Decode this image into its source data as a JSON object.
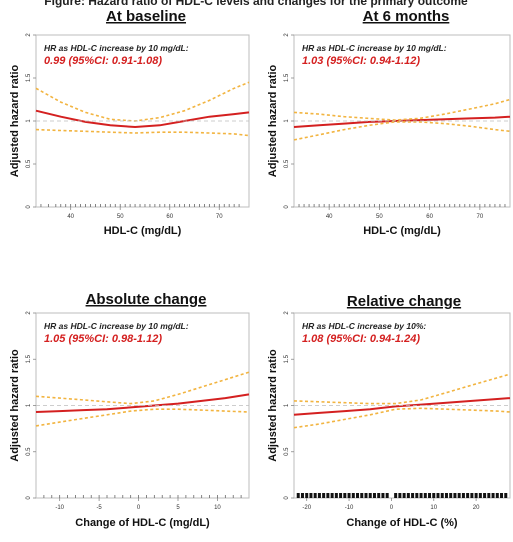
{
  "figure_header": "Figure: Hazard ratio of HDL-C levels and changes for the primary outcome",
  "chart_data": [
    {
      "type": "line",
      "title": "At baseline",
      "xlabel": "HDL-C (mg/dL)",
      "ylabel": "Adjusted hazard ratio",
      "annotation_line1": "HR as HDL-C increase by 10 mg/dL:",
      "annotation_line2": "0.99 (95%CI: 0.91-1.08)",
      "xlim": [
        33,
        76
      ],
      "ylim": [
        0,
        2
      ],
      "xticks": [
        40,
        50,
        60,
        70
      ],
      "yticks": [
        0,
        0.5,
        1.0,
        1.5,
        2.0
      ],
      "grid": false,
      "series": [
        {
          "role": "estimate",
          "color": "#d42020",
          "x": [
            33,
            38,
            43,
            48,
            53,
            58,
            63,
            68,
            73,
            76
          ],
          "y": [
            1.12,
            1.05,
            0.99,
            0.95,
            0.93,
            0.95,
            1.0,
            1.05,
            1.08,
            1.1
          ]
        },
        {
          "role": "ci-upper",
          "color": "#f2b440",
          "x": [
            33,
            38,
            43,
            48,
            53,
            58,
            63,
            68,
            73,
            76
          ],
          "y": [
            1.38,
            1.22,
            1.1,
            1.02,
            1.0,
            1.04,
            1.12,
            1.24,
            1.38,
            1.45
          ]
        },
        {
          "role": "ci-lower",
          "color": "#f2b440",
          "x": [
            33,
            38,
            43,
            48,
            53,
            58,
            63,
            68,
            73,
            76
          ],
          "y": [
            0.9,
            0.89,
            0.88,
            0.87,
            0.86,
            0.87,
            0.87,
            0.86,
            0.85,
            0.83
          ]
        },
        {
          "role": "reference",
          "color": "#bdbdbd",
          "x": [
            33,
            76
          ],
          "y": [
            1.0,
            1.0
          ]
        }
      ],
      "rug": [
        34,
        35.5,
        37,
        38,
        39,
        40,
        41,
        42,
        43,
        44,
        45,
        46,
        47,
        48,
        49,
        50,
        51,
        52,
        53,
        54,
        55,
        56,
        57,
        58,
        59,
        60,
        61,
        62,
        63,
        64,
        65,
        66,
        67,
        68,
        69,
        70,
        71,
        72,
        73,
        74
      ]
    },
    {
      "type": "line",
      "title": "At 6 months",
      "xlabel": "HDL-C (mg/dL)",
      "ylabel": "Adjusted hazard ratio",
      "annotation_line1": "HR as HDL-C increase by 10 mg/dL:",
      "annotation_line2": "1.03 (95%CI: 0.94-1.12)",
      "xlim": [
        33,
        76
      ],
      "ylim": [
        0,
        2
      ],
      "xticks": [
        40,
        50,
        60,
        70
      ],
      "yticks": [
        0,
        0.5,
        1.0,
        1.5,
        2.0
      ],
      "grid": false,
      "series": [
        {
          "role": "estimate",
          "color": "#d42020",
          "x": [
            33,
            38,
            43,
            48,
            53,
            58,
            63,
            68,
            73,
            76
          ],
          "y": [
            0.93,
            0.95,
            0.97,
            0.99,
            1.0,
            1.01,
            1.02,
            1.03,
            1.04,
            1.05
          ]
        },
        {
          "role": "ci-upper",
          "color": "#f2b440",
          "x": [
            33,
            38,
            43,
            48,
            53,
            58,
            63,
            68,
            73,
            76
          ],
          "y": [
            1.1,
            1.08,
            1.05,
            1.03,
            1.01,
            1.03,
            1.08,
            1.14,
            1.2,
            1.25
          ]
        },
        {
          "role": "ci-lower",
          "color": "#f2b440",
          "x": [
            33,
            38,
            43,
            48,
            53,
            58,
            63,
            68,
            73,
            76
          ],
          "y": [
            0.78,
            0.84,
            0.9,
            0.95,
            0.99,
            0.99,
            0.97,
            0.94,
            0.9,
            0.88
          ]
        },
        {
          "role": "reference",
          "color": "#bdbdbd",
          "x": [
            33,
            76
          ],
          "y": [
            1.0,
            1.0
          ]
        }
      ],
      "rug": [
        34,
        35,
        36,
        37,
        38,
        39,
        40,
        41,
        42,
        43,
        44,
        45,
        46,
        47,
        48,
        49,
        50,
        51,
        52,
        53,
        54,
        55,
        56,
        57,
        58,
        59,
        60,
        61,
        62,
        63,
        64,
        65,
        66,
        67,
        68,
        69,
        70,
        71,
        72,
        73,
        74,
        75
      ]
    },
    {
      "type": "line",
      "title": "Absolute change",
      "xlabel": "Change of HDL-C (mg/dL)",
      "ylabel": "Adjusted hazard ratio",
      "annotation_line1": "HR as HDL-C increase by 10 mg/dL:",
      "annotation_line2": "1.05 (95%CI: 0.98-1.12)",
      "xlim": [
        -13,
        14
      ],
      "ylim": [
        0,
        2
      ],
      "xticks": [
        -10,
        -5,
        0,
        5,
        10
      ],
      "yticks": [
        0,
        0.5,
        1.0,
        1.5,
        2.0
      ],
      "grid": false,
      "series": [
        {
          "role": "estimate",
          "color": "#d42020",
          "x": [
            -13,
            -10,
            -7,
            -4,
            -1,
            2,
            5,
            8,
            11,
            14
          ],
          "y": [
            0.93,
            0.94,
            0.95,
            0.96,
            0.98,
            1.0,
            1.02,
            1.05,
            1.08,
            1.12
          ]
        },
        {
          "role": "ci-upper",
          "color": "#f2b440",
          "x": [
            -13,
            -10,
            -7,
            -4,
            -1,
            2,
            5,
            8,
            11,
            14
          ],
          "y": [
            1.1,
            1.08,
            1.06,
            1.04,
            1.02,
            1.05,
            1.12,
            1.2,
            1.28,
            1.36
          ]
        },
        {
          "role": "ci-lower",
          "color": "#f2b440",
          "x": [
            -13,
            -10,
            -7,
            -4,
            -1,
            2,
            5,
            8,
            11,
            14
          ],
          "y": [
            0.78,
            0.82,
            0.86,
            0.9,
            0.94,
            0.96,
            0.96,
            0.95,
            0.94,
            0.93
          ]
        },
        {
          "role": "reference",
          "color": "#bdbdbd",
          "x": [
            -13,
            14
          ],
          "y": [
            1.0,
            1.0
          ]
        }
      ],
      "rug": [
        -12,
        -11,
        -10,
        -9,
        -8,
        -7,
        -6,
        -5,
        -4,
        -3,
        -2,
        -1,
        0,
        1,
        2,
        3,
        4,
        5,
        6,
        7,
        8,
        9,
        10,
        11,
        12,
        13
      ]
    },
    {
      "type": "line",
      "title": "Relative change",
      "xlabel": "Change of HDL-C (%)",
      "ylabel": "Adjusted hazard ratio",
      "annotation_line1": "HR as HDL-C increase by 10%:",
      "annotation_line2": "1.08 (95%CI: 0.94-1.24)",
      "xlim": [
        -23,
        28
      ],
      "ylim": [
        0,
        2
      ],
      "xticks": [
        -20,
        -10,
        0,
        10,
        20
      ],
      "yticks": [
        0,
        0.5,
        1.0,
        1.5,
        2.0
      ],
      "grid": false,
      "series": [
        {
          "role": "estimate",
          "color": "#d42020",
          "x": [
            -23,
            -17,
            -11,
            -5,
            1,
            7,
            13,
            19,
            25,
            28
          ],
          "y": [
            0.9,
            0.92,
            0.94,
            0.96,
            0.99,
            1.01,
            1.03,
            1.05,
            1.07,
            1.08
          ]
        },
        {
          "role": "ci-upper",
          "color": "#f2b440",
          "x": [
            -23,
            -17,
            -11,
            -5,
            1,
            7,
            13,
            19,
            25,
            28
          ],
          "y": [
            1.05,
            1.04,
            1.03,
            1.02,
            1.02,
            1.06,
            1.14,
            1.22,
            1.3,
            1.34
          ]
        },
        {
          "role": "ci-lower",
          "color": "#f2b440",
          "x": [
            -23,
            -17,
            -11,
            -5,
            1,
            7,
            13,
            19,
            25,
            28
          ],
          "y": [
            0.76,
            0.8,
            0.85,
            0.9,
            0.96,
            0.97,
            0.96,
            0.95,
            0.94,
            0.93
          ]
        },
        {
          "role": "reference",
          "color": "#bdbdbd",
          "x": [
            -23,
            28
          ],
          "y": [
            1.0,
            1.0
          ]
        }
      ],
      "rug": [
        -22,
        -21,
        -20,
        -19,
        -18,
        -17,
        -16,
        -15,
        -14,
        -13,
        -12,
        -11,
        -10,
        -9,
        -8,
        -7,
        -6,
        -5,
        -4,
        -3,
        -2,
        -1,
        1,
        2,
        3,
        4,
        5,
        6,
        7,
        8,
        9,
        10,
        11,
        12,
        13,
        14,
        15,
        16,
        17,
        18,
        19,
        20,
        21,
        22,
        23,
        24,
        25,
        26,
        27
      ]
    }
  ]
}
